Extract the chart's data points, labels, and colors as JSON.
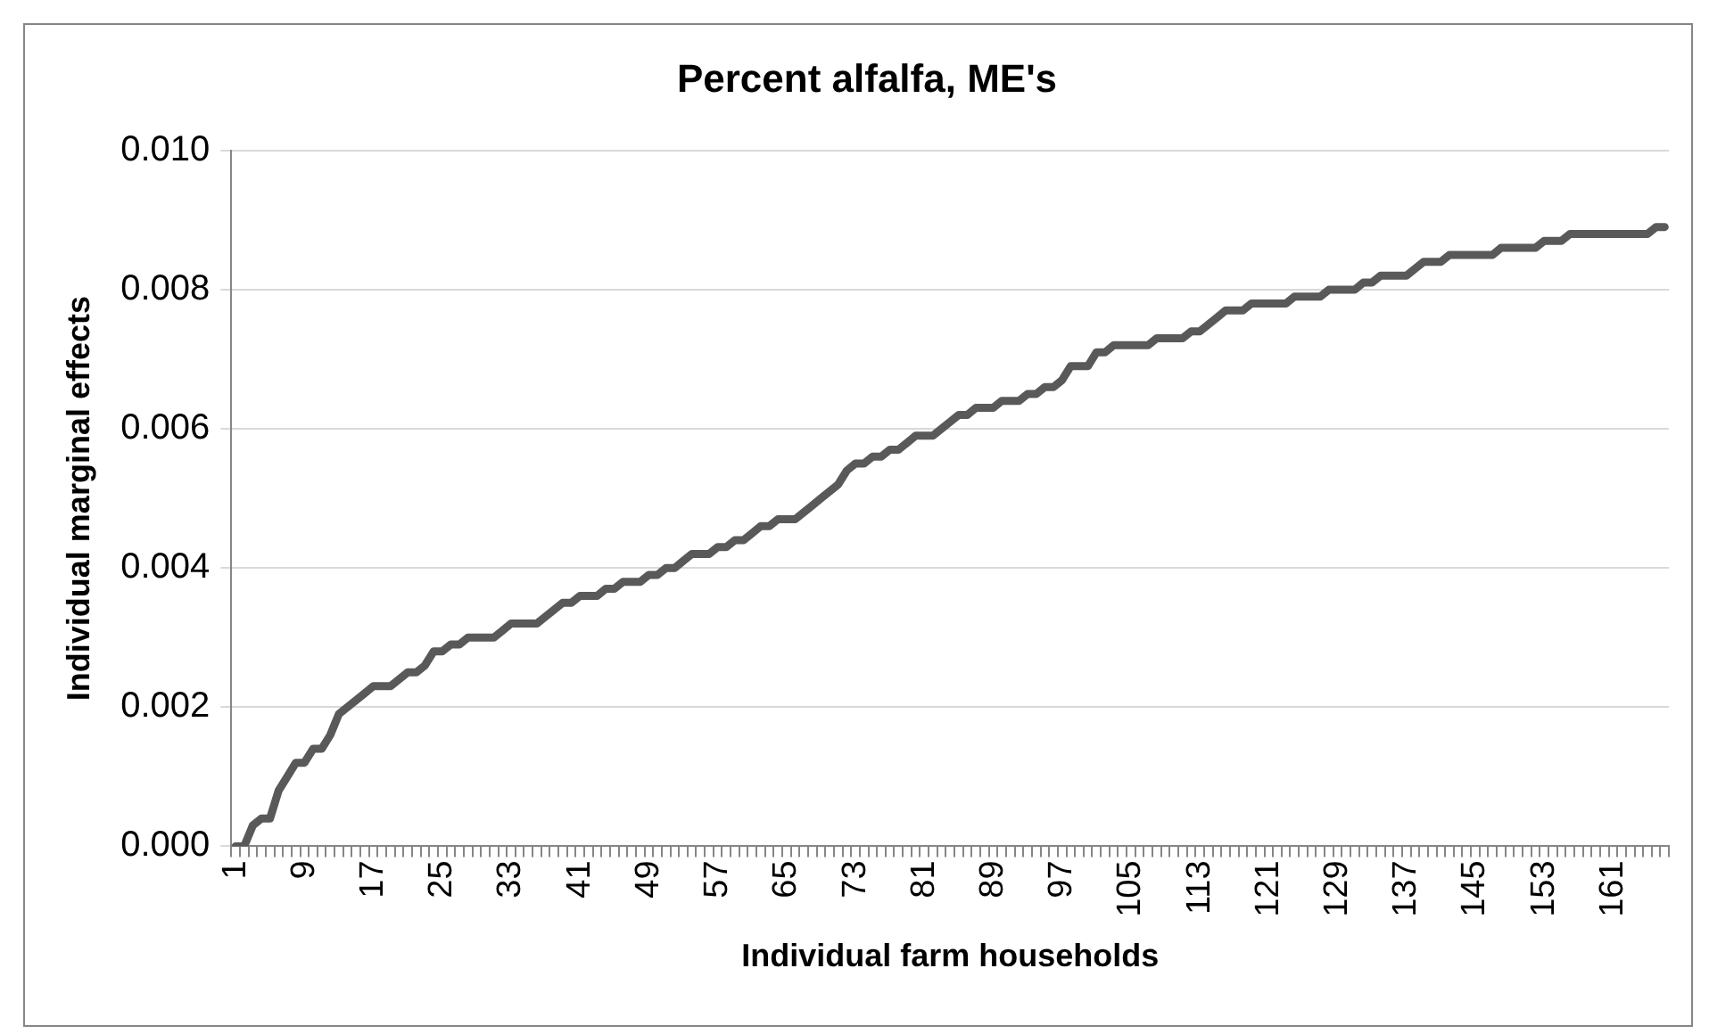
{
  "chart_data": {
    "type": "line",
    "title": "Percent alfalfa, ME's",
    "xlabel": "Individual farm households",
    "ylabel": "Individual marginal effects",
    "categories": [
      "1",
      null,
      null,
      null,
      null,
      null,
      null,
      null,
      "9",
      null,
      null,
      null,
      null,
      null,
      null,
      null,
      "17",
      null,
      null,
      null,
      null,
      null,
      null,
      null,
      "25",
      null,
      null,
      null,
      null,
      null,
      null,
      null,
      "33",
      null,
      null,
      null,
      null,
      null,
      null,
      null,
      "41",
      null,
      null,
      null,
      null,
      null,
      null,
      null,
      "49",
      null,
      null,
      null,
      null,
      null,
      null,
      null,
      "57",
      null,
      null,
      null,
      null,
      null,
      null,
      null,
      "65",
      null,
      null,
      null,
      null,
      null,
      null,
      null,
      "73",
      null,
      null,
      null,
      null,
      null,
      null,
      null,
      "81",
      null,
      null,
      null,
      null,
      null,
      null,
      null,
      "89",
      null,
      null,
      null,
      null,
      null,
      null,
      null,
      "97",
      null,
      null,
      null,
      null,
      null,
      null,
      null,
      "105",
      null,
      null,
      null,
      null,
      null,
      null,
      null,
      "113",
      null,
      null,
      null,
      null,
      null,
      null,
      null,
      "121",
      null,
      null,
      null,
      null,
      null,
      null,
      null,
      "129",
      null,
      null,
      null,
      null,
      null,
      null,
      null,
      "137",
      null,
      null,
      null,
      null,
      null,
      null,
      null,
      "145",
      null,
      null,
      null,
      null,
      null,
      null,
      null,
      "153",
      null,
      null,
      null,
      null,
      null,
      null,
      null,
      "161",
      null,
      null,
      null,
      null,
      null,
      null
    ],
    "values": [
      0,
      0,
      0.0003,
      0.0004,
      0.0004,
      0.0008,
      0.001,
      0.0012,
      0.0012,
      0.0014,
      0.0014,
      0.0016,
      0.0019,
      0.002,
      0.0021,
      0.0022,
      0.0023,
      0.0023,
      0.0023,
      0.0024,
      0.0025,
      0.0025,
      0.0026,
      0.0028,
      0.0028,
      0.0029,
      0.0029,
      0.003,
      0.003,
      0.003,
      0.003,
      0.0031,
      0.0032,
      0.0032,
      0.0032,
      0.0032,
      0.0033,
      0.0034,
      0.0035,
      0.0035,
      0.0036,
      0.0036,
      0.0036,
      0.0037,
      0.0037,
      0.0038,
      0.0038,
      0.0038,
      0.0039,
      0.0039,
      0.004,
      0.004,
      0.0041,
      0.0042,
      0.0042,
      0.0042,
      0.0043,
      0.0043,
      0.0044,
      0.0044,
      0.0045,
      0.0046,
      0.0046,
      0.0047,
      0.0047,
      0.0047,
      0.0048,
      0.0049,
      0.005,
      0.0051,
      0.0052,
      0.0054,
      0.0055,
      0.0055,
      0.0056,
      0.0056,
      0.0057,
      0.0057,
      0.0058,
      0.0059,
      0.0059,
      0.0059,
      0.006,
      0.0061,
      0.0062,
      0.0062,
      0.0063,
      0.0063,
      0.0063,
      0.0064,
      0.0064,
      0.0064,
      0.0065,
      0.0065,
      0.0066,
      0.0066,
      0.0067,
      0.0069,
      0.0069,
      0.0069,
      0.0071,
      0.0071,
      0.0072,
      0.0072,
      0.0072,
      0.0072,
      0.0072,
      0.0073,
      0.0073,
      0.0073,
      0.0073,
      0.0074,
      0.0074,
      0.0075,
      0.0076,
      0.0077,
      0.0077,
      0.0077,
      0.0078,
      0.0078,
      0.0078,
      0.0078,
      0.0078,
      0.0079,
      0.0079,
      0.0079,
      0.0079,
      0.008,
      0.008,
      0.008,
      0.008,
      0.0081,
      0.0081,
      0.0082,
      0.0082,
      0.0082,
      0.0082,
      0.0083,
      0.0084,
      0.0084,
      0.0084,
      0.0085,
      0.0085,
      0.0085,
      0.0085,
      0.0085,
      0.0085,
      0.0086,
      0.0086,
      0.0086,
      0.0086,
      0.0086,
      0.0087,
      0.0087,
      0.0087,
      0.0088,
      0.0088,
      0.0088,
      0.0088,
      0.0088,
      0.0088,
      0.0088,
      0.0088,
      0.0088,
      0.0088,
      0.0089,
      0.0089
    ],
    "color": "#595959",
    "ylim": [
      0,
      0.01
    ],
    "yticks": [
      {
        "value": 0,
        "label": "0.000"
      },
      {
        "value": 0.002,
        "label": "0.002"
      },
      {
        "value": 0.004,
        "label": "0.004"
      },
      {
        "value": 0.006,
        "label": "0.006"
      },
      {
        "value": 0.008,
        "label": "0.008"
      },
      {
        "value": 0.01,
        "label": "0.010"
      }
    ],
    "grid": "y"
  }
}
